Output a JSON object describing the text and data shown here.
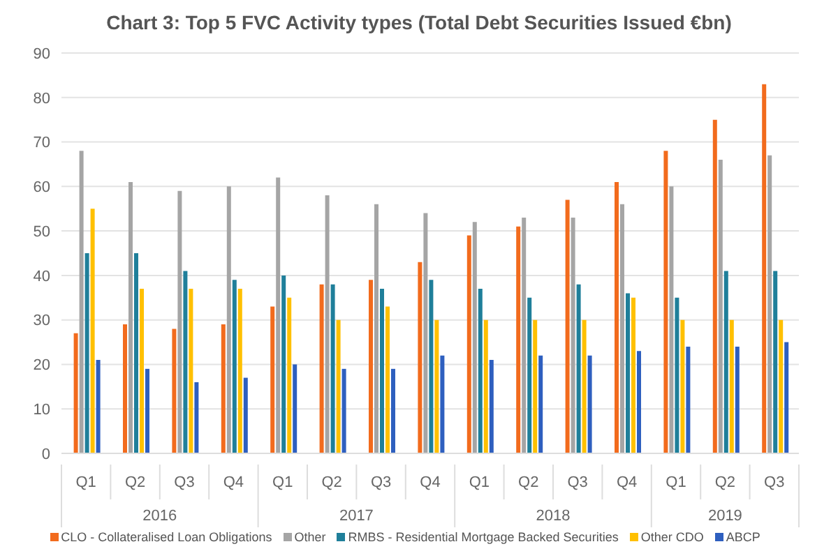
{
  "chart_data": {
    "type": "bar",
    "title": "Chart 3: Top 5 FVC Activity types (Total Debt Securities Issued €bn)",
    "categories": [
      "Q1",
      "Q2",
      "Q3",
      "Q4",
      "Q1",
      "Q2",
      "Q3",
      "Q4",
      "Q1",
      "Q2",
      "Q3",
      "Q4",
      "Q1",
      "Q2",
      "Q3"
    ],
    "annotations": [
      "2016",
      "2017",
      "2018",
      "2019"
    ],
    "series": [
      {
        "name": "CLO - Collateralised Loan Obligations",
        "color": "#f26b1d",
        "values": [
          27,
          29,
          28,
          29,
          33,
          38,
          39,
          43,
          49,
          51,
          57,
          61,
          68,
          75,
          83
        ]
      },
      {
        "name": "Other",
        "color": "#a5a5a5",
        "values": [
          68,
          61,
          59,
          60,
          62,
          58,
          56,
          54,
          52,
          53,
          53,
          56,
          60,
          66,
          67
        ]
      },
      {
        "name": "RMBS - Residential Mortgage Backed Securities",
        "color": "#1f7f9a",
        "values": [
          45,
          45,
          41,
          39,
          40,
          38,
          37,
          39,
          37,
          35,
          38,
          36,
          35,
          41,
          41
        ]
      },
      {
        "name": "Other CDO",
        "color": "#ffc000",
        "values": [
          55,
          37,
          37,
          37,
          35,
          30,
          33,
          30,
          30,
          30,
          30,
          35,
          30,
          30,
          30
        ]
      },
      {
        "name": "ABCP",
        "color": "#2e5fbf",
        "values": [
          21,
          19,
          16,
          17,
          20,
          19,
          19,
          22,
          21,
          22,
          22,
          23,
          24,
          24,
          25
        ]
      }
    ],
    "ylim": [
      0,
      90
    ],
    "yticks": [
      0,
      10,
      20,
      30,
      40,
      50,
      60,
      70,
      80,
      90
    ],
    "grid": "y",
    "legend": "bottom"
  }
}
